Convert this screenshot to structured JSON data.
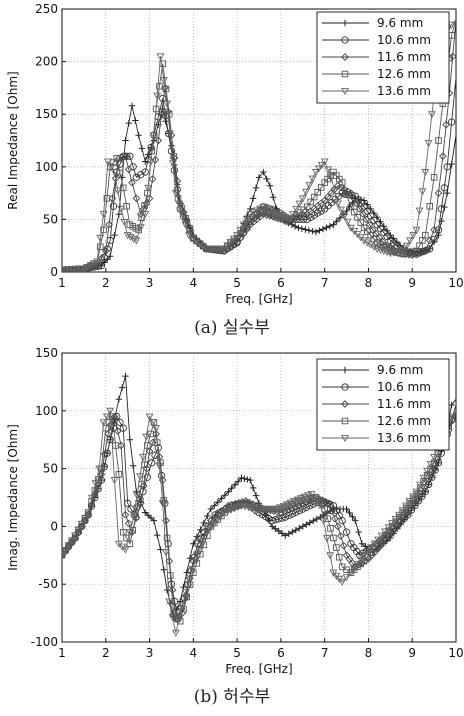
{
  "chart_data": [
    {
      "type": "line",
      "caption": "(a) 실수부",
      "xlabel": "Freq. [GHz]",
      "ylabel": "Real Impedance [Ohm]",
      "xlim": [
        1,
        10
      ],
      "ylim": [
        0,
        250
      ],
      "xticks": [
        1,
        2,
        3,
        4,
        5,
        6,
        7,
        8,
        9,
        10
      ],
      "yticks": [
        0,
        50,
        100,
        150,
        200,
        250
      ],
      "grid": true,
      "legend_position": "top-right",
      "series": [
        {
          "name": "9.6 mm",
          "marker": "plus",
          "color": "#222222",
          "x": [
            1.0,
            1.5,
            1.9,
            2.1,
            2.3,
            2.45,
            2.6,
            2.75,
            2.9,
            3.1,
            3.3,
            3.5,
            3.7,
            4.0,
            4.3,
            4.7,
            5.0,
            5.3,
            5.5,
            5.6,
            5.75,
            5.9,
            6.1,
            6.4,
            6.8,
            7.2,
            7.5,
            7.7,
            7.9,
            8.2,
            8.5,
            8.8,
            9.1,
            9.4,
            9.6,
            9.8,
            10.0
          ],
          "y": [
            2,
            3,
            6,
            15,
            55,
            125,
            158,
            130,
            105,
            125,
            155,
            120,
            65,
            35,
            22,
            22,
            32,
            60,
            90,
            95,
            82,
            60,
            48,
            42,
            38,
            45,
            58,
            70,
            68,
            52,
            35,
            22,
            18,
            22,
            35,
            75,
            130
          ]
        },
        {
          "name": "10.6 mm",
          "marker": "circle",
          "color": "#333333",
          "x": [
            1.0,
            1.5,
            1.9,
            2.1,
            2.25,
            2.4,
            2.55,
            2.7,
            2.9,
            3.1,
            3.3,
            3.5,
            3.7,
            4.0,
            4.3,
            4.7,
            5.0,
            5.3,
            5.6,
            5.9,
            6.2,
            6.6,
            7.0,
            7.4,
            7.7,
            7.9,
            8.2,
            8.5,
            8.8,
            9.1,
            9.4,
            9.6,
            9.8,
            10.0
          ],
          "y": [
            2,
            3,
            6,
            30,
            95,
            110,
            110,
            90,
            95,
            130,
            165,
            115,
            60,
            32,
            22,
            20,
            28,
            48,
            62,
            58,
            50,
            50,
            60,
            75,
            72,
            62,
            45,
            30,
            20,
            17,
            22,
            40,
            100,
            185
          ]
        },
        {
          "name": "11.6 mm",
          "marker": "diamond",
          "color": "#444444",
          "x": [
            1.0,
            1.5,
            1.8,
            2.0,
            2.15,
            2.3,
            2.45,
            2.6,
            2.8,
            3.0,
            3.2,
            3.35,
            3.5,
            3.7,
            4.0,
            4.3,
            4.7,
            5.0,
            5.3,
            5.6,
            5.9,
            6.2,
            6.6,
            7.0,
            7.3,
            7.6,
            7.8,
            8.1,
            8.4,
            8.7,
            9.0,
            9.3,
            9.5,
            9.7,
            9.85,
            10.0
          ],
          "y": [
            2,
            3,
            6,
            20,
            70,
            108,
            110,
            85,
            55,
            70,
            125,
            175,
            130,
            65,
            32,
            22,
            20,
            28,
            45,
            55,
            52,
            50,
            55,
            68,
            82,
            75,
            60,
            40,
            25,
            18,
            16,
            20,
            40,
            110,
            170,
            240
          ]
        },
        {
          "name": "12.6 mm",
          "marker": "square",
          "color": "#555555",
          "x": [
            1.0,
            1.5,
            1.8,
            1.95,
            2.1,
            2.25,
            2.4,
            2.55,
            2.75,
            2.95,
            3.15,
            3.3,
            3.45,
            3.65,
            4.0,
            4.3,
            4.7,
            5.0,
            5.3,
            5.6,
            5.9,
            6.2,
            6.6,
            7.0,
            7.2,
            7.4,
            7.6,
            7.9,
            8.2,
            8.5,
            8.8,
            9.1,
            9.3,
            9.5,
            9.7,
            9.9,
            10.0
          ],
          "y": [
            2,
            3,
            8,
            40,
            100,
            108,
            80,
            45,
            40,
            75,
            155,
            198,
            150,
            70,
            32,
            22,
            22,
            32,
            50,
            58,
            52,
            48,
            62,
            85,
            95,
            85,
            62,
            42,
            28,
            20,
            17,
            20,
            35,
            90,
            160,
            225,
            240
          ]
        },
        {
          "name": "13.6 mm",
          "marker": "triangle-down",
          "color": "#666666",
          "x": [
            1.0,
            1.5,
            1.8,
            1.95,
            2.05,
            2.2,
            2.35,
            2.5,
            2.7,
            2.9,
            3.1,
            3.25,
            3.4,
            3.6,
            3.9,
            4.3,
            4.7,
            5.0,
            5.3,
            5.6,
            5.9,
            6.2,
            6.5,
            6.8,
            7.0,
            7.15,
            7.3,
            7.6,
            7.9,
            8.2,
            8.5,
            8.8,
            9.1,
            9.3,
            9.45,
            9.6,
            9.8,
            10.0
          ],
          "y": [
            2,
            3,
            10,
            55,
            105,
            95,
            60,
            35,
            30,
            55,
            130,
            205,
            160,
            75,
            35,
            22,
            22,
            35,
            55,
            62,
            55,
            50,
            70,
            95,
            105,
            90,
            65,
            42,
            30,
            22,
            18,
            20,
            40,
            95,
            150,
            200,
            230,
            240
          ]
        }
      ]
    },
    {
      "type": "line",
      "caption": "(b) 허수부",
      "xlabel": "Freq. [GHz]",
      "ylabel": "Imag. Impedance [Ohm]",
      "xlim": [
        1,
        10
      ],
      "ylim": [
        -100,
        150
      ],
      "xticks": [
        1,
        2,
        3,
        4,
        5,
        6,
        7,
        8,
        9,
        10
      ],
      "yticks": [
        -100,
        -50,
        0,
        50,
        100,
        150
      ],
      "grid": true,
      "legend_position": "top-right",
      "series": [
        {
          "name": "9.6 mm",
          "marker": "plus",
          "color": "#222222",
          "x": [
            1.0,
            1.3,
            1.6,
            1.9,
            2.1,
            2.3,
            2.45,
            2.55,
            2.7,
            2.9,
            3.1,
            3.25,
            3.4,
            3.55,
            3.7,
            4.0,
            4.4,
            4.8,
            5.1,
            5.3,
            5.5,
            5.8,
            6.1,
            6.5,
            6.9,
            7.2,
            7.5,
            7.7,
            7.85,
            8.1,
            8.5,
            8.9,
            9.3,
            9.6,
            9.8,
            9.9,
            10.0
          ],
          "y": [
            -25,
            -10,
            10,
            40,
            75,
            110,
            130,
            75,
            30,
            12,
            5,
            -20,
            -55,
            -78,
            -65,
            -15,
            15,
            30,
            42,
            40,
            20,
            0,
            -8,
            0,
            8,
            15,
            15,
            5,
            -15,
            -22,
            -10,
            10,
            30,
            55,
            85,
            105,
            110
          ]
        },
        {
          "name": "10.6 mm",
          "marker": "circle",
          "color": "#333333",
          "x": [
            1.0,
            1.3,
            1.6,
            1.9,
            2.1,
            2.25,
            2.4,
            2.5,
            2.65,
            2.85,
            3.05,
            3.2,
            3.35,
            3.5,
            3.65,
            3.8,
            4.1,
            4.5,
            4.9,
            5.2,
            5.5,
            5.8,
            6.1,
            6.5,
            6.9,
            7.2,
            7.4,
            7.6,
            7.8,
            8.1,
            8.5,
            8.9,
            9.3,
            9.6,
            9.8,
            10.0
          ],
          "y": [
            -25,
            -10,
            10,
            40,
            75,
            95,
            85,
            20,
            10,
            30,
            55,
            68,
            20,
            -50,
            -80,
            -62,
            -15,
            10,
            18,
            20,
            12,
            5,
            8,
            15,
            22,
            18,
            5,
            -15,
            -25,
            -18,
            -5,
            10,
            30,
            55,
            80,
            105
          ]
        },
        {
          "name": "11.6 mm",
          "marker": "diamond",
          "color": "#444444",
          "x": [
            1.0,
            1.3,
            1.6,
            1.9,
            2.05,
            2.2,
            2.35,
            2.45,
            2.6,
            2.8,
            3.0,
            3.15,
            3.3,
            3.45,
            3.6,
            3.75,
            4.0,
            4.4,
            4.8,
            5.2,
            5.6,
            6.0,
            6.4,
            6.8,
            7.1,
            7.3,
            7.5,
            7.7,
            8.0,
            8.4,
            8.8,
            9.2,
            9.5,
            9.75,
            10.0
          ],
          "y": [
            -25,
            -10,
            10,
            45,
            80,
            95,
            70,
            10,
            -5,
            20,
            65,
            80,
            40,
            -30,
            -80,
            -75,
            -30,
            5,
            18,
            22,
            15,
            12,
            18,
            25,
            20,
            0,
            -25,
            -35,
            -28,
            -12,
            8,
            28,
            50,
            75,
            100
          ]
        },
        {
          "name": "12.6 mm",
          "marker": "square",
          "color": "#555555",
          "x": [
            1.0,
            1.3,
            1.6,
            1.9,
            2.0,
            2.15,
            2.3,
            2.4,
            2.55,
            2.75,
            2.95,
            3.1,
            3.25,
            3.4,
            3.55,
            3.7,
            4.0,
            4.4,
            4.8,
            5.2,
            5.6,
            6.0,
            6.4,
            6.8,
            7.0,
            7.2,
            7.4,
            7.6,
            7.9,
            8.3,
            8.7,
            9.1,
            9.5,
            9.75,
            10.0
          ],
          "y": [
            -25,
            -8,
            12,
            50,
            85,
            95,
            45,
            -5,
            -15,
            20,
            70,
            90,
            55,
            -10,
            -75,
            -82,
            -40,
            0,
            15,
            20,
            15,
            15,
            22,
            25,
            15,
            -10,
            -35,
            -40,
            -30,
            -12,
            8,
            28,
            55,
            80,
            100
          ]
        },
        {
          "name": "13.6 mm",
          "marker": "triangle-down",
          "color": "#666666",
          "x": [
            1.0,
            1.3,
            1.6,
            1.85,
            1.95,
            2.1,
            2.2,
            2.3,
            2.45,
            2.65,
            2.85,
            3.0,
            3.15,
            3.3,
            3.45,
            3.6,
            3.9,
            4.3,
            4.7,
            5.1,
            5.5,
            5.9,
            6.3,
            6.7,
            6.9,
            7.05,
            7.2,
            7.4,
            7.6,
            7.9,
            8.3,
            8.7,
            9.1,
            9.5,
            9.75,
            10.0
          ],
          "y": [
            -25,
            -8,
            12,
            50,
            90,
            100,
            40,
            -15,
            -20,
            10,
            60,
            95,
            85,
            20,
            -65,
            -92,
            -45,
            -5,
            12,
            18,
            15,
            15,
            22,
            28,
            20,
            -10,
            -40,
            -48,
            -40,
            -25,
            -8,
            10,
            30,
            60,
            85,
            100
          ]
        }
      ]
    }
  ]
}
